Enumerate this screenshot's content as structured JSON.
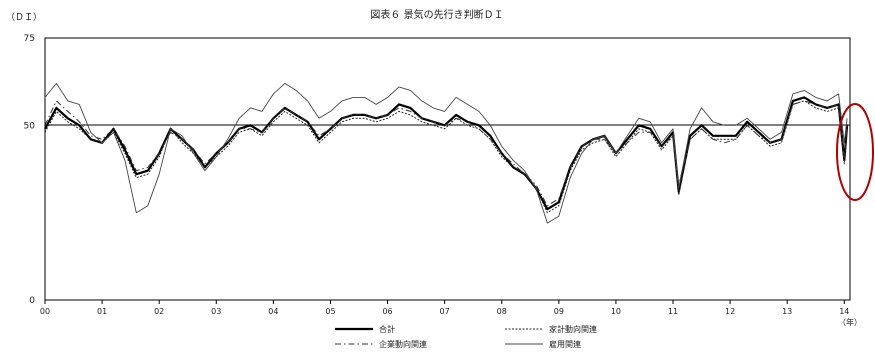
{
  "chart_data": {
    "type": "line",
    "title": "図表６ 景気の先行き判断ＤＩ",
    "ylabel": "（ＤＩ）",
    "xunit": "（年）",
    "ylim": [
      0,
      75
    ],
    "yticks": [
      "0",
      "50",
      "75"
    ],
    "xlim": [
      2000,
      2014.1
    ],
    "xticks": [
      "00",
      "01",
      "02",
      "03",
      "04",
      "05",
      "06",
      "07",
      "08",
      "09",
      "10",
      "11",
      "12",
      "13",
      "14"
    ],
    "reference_line": 50,
    "legend": [
      "合計",
      "家計動向関連",
      "企業動向関連",
      "雇用関連"
    ],
    "series": [
      {
        "name": "合計",
        "style": "thick",
        "color": "#000000",
        "points": [
          [
            2000.0,
            49
          ],
          [
            2000.2,
            55
          ],
          [
            2000.4,
            52
          ],
          [
            2000.6,
            50
          ],
          [
            2000.8,
            46
          ],
          [
            2001.0,
            45
          ],
          [
            2001.2,
            49
          ],
          [
            2001.4,
            43
          ],
          [
            2001.6,
            36
          ],
          [
            2001.8,
            37
          ],
          [
            2002.0,
            42
          ],
          [
            2002.2,
            49
          ],
          [
            2002.4,
            46
          ],
          [
            2002.6,
            43
          ],
          [
            2002.8,
            38
          ],
          [
            2003.0,
            42
          ],
          [
            2003.2,
            45
          ],
          [
            2003.4,
            49
          ],
          [
            2003.6,
            50
          ],
          [
            2003.8,
            48
          ],
          [
            2004.0,
            52
          ],
          [
            2004.2,
            55
          ],
          [
            2004.4,
            53
          ],
          [
            2004.6,
            51
          ],
          [
            2004.8,
            46
          ],
          [
            2005.0,
            49
          ],
          [
            2005.2,
            52
          ],
          [
            2005.4,
            53
          ],
          [
            2005.6,
            53
          ],
          [
            2005.8,
            52
          ],
          [
            2006.0,
            53
          ],
          [
            2006.2,
            56
          ],
          [
            2006.4,
            55
          ],
          [
            2006.6,
            52
          ],
          [
            2006.8,
            51
          ],
          [
            2007.0,
            50
          ],
          [
            2007.2,
            53
          ],
          [
            2007.4,
            51
          ],
          [
            2007.6,
            50
          ],
          [
            2007.8,
            47
          ],
          [
            2008.0,
            42
          ],
          [
            2008.2,
            38
          ],
          [
            2008.4,
            36
          ],
          [
            2008.6,
            32
          ],
          [
            2008.8,
            26
          ],
          [
            2009.0,
            28
          ],
          [
            2009.2,
            38
          ],
          [
            2009.4,
            44
          ],
          [
            2009.6,
            46
          ],
          [
            2009.8,
            47
          ],
          [
            2010.0,
            42
          ],
          [
            2010.2,
            46
          ],
          [
            2010.4,
            50
          ],
          [
            2010.6,
            49
          ],
          [
            2010.8,
            44
          ],
          [
            2011.0,
            48
          ],
          [
            2011.1,
            31
          ],
          [
            2011.3,
            47
          ],
          [
            2011.5,
            50
          ],
          [
            2011.7,
            47
          ],
          [
            2011.9,
            47
          ],
          [
            2012.1,
            47
          ],
          [
            2012.3,
            51
          ],
          [
            2012.5,
            48
          ],
          [
            2012.7,
            45
          ],
          [
            2012.9,
            46
          ],
          [
            2013.1,
            57
          ],
          [
            2013.3,
            58
          ],
          [
            2013.5,
            56
          ],
          [
            2013.7,
            55
          ],
          [
            2013.9,
            56
          ],
          [
            2014.0,
            40
          ],
          [
            2014.05,
            50
          ]
        ]
      },
      {
        "name": "家計動向関連",
        "style": "dotted",
        "color": "#222222",
        "points": [
          [
            2000.0,
            48
          ],
          [
            2000.2,
            54
          ],
          [
            2000.4,
            51
          ],
          [
            2000.6,
            49
          ],
          [
            2000.8,
            46
          ],
          [
            2001.0,
            45
          ],
          [
            2001.2,
            48
          ],
          [
            2001.4,
            42
          ],
          [
            2001.6,
            35
          ],
          [
            2001.8,
            36
          ],
          [
            2002.0,
            41
          ],
          [
            2002.2,
            49
          ],
          [
            2002.4,
            45
          ],
          [
            2002.6,
            42
          ],
          [
            2002.8,
            38
          ],
          [
            2003.0,
            41
          ],
          [
            2003.2,
            44
          ],
          [
            2003.4,
            48
          ],
          [
            2003.6,
            49
          ],
          [
            2003.8,
            47
          ],
          [
            2004.0,
            51
          ],
          [
            2004.2,
            54
          ],
          [
            2004.4,
            52
          ],
          [
            2004.6,
            50
          ],
          [
            2004.8,
            45
          ],
          [
            2005.0,
            48
          ],
          [
            2005.2,
            51
          ],
          [
            2005.4,
            52
          ],
          [
            2005.6,
            52
          ],
          [
            2005.8,
            51
          ],
          [
            2006.0,
            52
          ],
          [
            2006.2,
            54
          ],
          [
            2006.4,
            53
          ],
          [
            2006.6,
            51
          ],
          [
            2006.8,
            50
          ],
          [
            2007.0,
            49
          ],
          [
            2007.2,
            52
          ],
          [
            2007.4,
            50
          ],
          [
            2007.6,
            49
          ],
          [
            2007.8,
            46
          ],
          [
            2008.0,
            41
          ],
          [
            2008.2,
            38
          ],
          [
            2008.4,
            36
          ],
          [
            2008.6,
            32
          ],
          [
            2008.8,
            25
          ],
          [
            2009.0,
            27
          ],
          [
            2009.2,
            37
          ],
          [
            2009.4,
            43
          ],
          [
            2009.6,
            45
          ],
          [
            2009.8,
            46
          ],
          [
            2010.0,
            41
          ],
          [
            2010.2,
            45
          ],
          [
            2010.4,
            49
          ],
          [
            2010.6,
            48
          ],
          [
            2010.8,
            43
          ],
          [
            2011.0,
            47
          ],
          [
            2011.1,
            30
          ],
          [
            2011.3,
            46
          ],
          [
            2011.5,
            49
          ],
          [
            2011.7,
            46
          ],
          [
            2011.9,
            46
          ],
          [
            2012.1,
            46
          ],
          [
            2012.3,
            50
          ],
          [
            2012.5,
            47
          ],
          [
            2012.7,
            44
          ],
          [
            2012.9,
            45
          ],
          [
            2013.1,
            56
          ],
          [
            2013.3,
            57
          ],
          [
            2013.5,
            55
          ],
          [
            2013.7,
            54
          ],
          [
            2013.9,
            55
          ],
          [
            2014.0,
            39
          ],
          [
            2014.05,
            49
          ]
        ]
      },
      {
        "name": "企業動向関連",
        "style": "dashdot",
        "color": "#333333",
        "points": [
          [
            2000.0,
            50
          ],
          [
            2000.2,
            57
          ],
          [
            2000.4,
            54
          ],
          [
            2000.6,
            51
          ],
          [
            2000.8,
            47
          ],
          [
            2001.0,
            46
          ],
          [
            2001.2,
            49
          ],
          [
            2001.4,
            44
          ],
          [
            2001.6,
            37
          ],
          [
            2001.8,
            38
          ],
          [
            2002.0,
            42
          ],
          [
            2002.2,
            48
          ],
          [
            2002.4,
            46
          ],
          [
            2002.6,
            43
          ],
          [
            2002.8,
            39
          ],
          [
            2003.0,
            42
          ],
          [
            2003.2,
            45
          ],
          [
            2003.4,
            49
          ],
          [
            2003.6,
            49
          ],
          [
            2003.8,
            48
          ],
          [
            2004.0,
            52
          ],
          [
            2004.2,
            55
          ],
          [
            2004.4,
            53
          ],
          [
            2004.6,
            51
          ],
          [
            2004.8,
            47
          ],
          [
            2005.0,
            49
          ],
          [
            2005.2,
            52
          ],
          [
            2005.4,
            53
          ],
          [
            2005.6,
            53
          ],
          [
            2005.8,
            52
          ],
          [
            2006.0,
            53
          ],
          [
            2006.2,
            55
          ],
          [
            2006.4,
            54
          ],
          [
            2006.6,
            52
          ],
          [
            2006.8,
            51
          ],
          [
            2007.0,
            50
          ],
          [
            2007.2,
            52
          ],
          [
            2007.4,
            51
          ],
          [
            2007.6,
            49
          ],
          [
            2007.8,
            46
          ],
          [
            2008.0,
            42
          ],
          [
            2008.2,
            39
          ],
          [
            2008.4,
            36
          ],
          [
            2008.6,
            33
          ],
          [
            2008.8,
            27
          ],
          [
            2009.0,
            29
          ],
          [
            2009.2,
            38
          ],
          [
            2009.4,
            44
          ],
          [
            2009.6,
            46
          ],
          [
            2009.8,
            46
          ],
          [
            2010.0,
            42
          ],
          [
            2010.2,
            45
          ],
          [
            2010.4,
            48
          ],
          [
            2010.6,
            48
          ],
          [
            2010.8,
            44
          ],
          [
            2011.0,
            47
          ],
          [
            2011.1,
            33
          ],
          [
            2011.3,
            46
          ],
          [
            2011.5,
            49
          ],
          [
            2011.7,
            46
          ],
          [
            2011.9,
            45
          ],
          [
            2012.1,
            46
          ],
          [
            2012.3,
            50
          ],
          [
            2012.5,
            47
          ],
          [
            2012.7,
            45
          ],
          [
            2012.9,
            46
          ],
          [
            2013.1,
            56
          ],
          [
            2013.3,
            57
          ],
          [
            2013.5,
            56
          ],
          [
            2013.7,
            55
          ],
          [
            2013.9,
            56
          ],
          [
            2014.0,
            41
          ],
          [
            2014.05,
            50
          ]
        ]
      },
      {
        "name": "雇用関連",
        "style": "thin",
        "color": "#444444",
        "points": [
          [
            2000.0,
            58
          ],
          [
            2000.2,
            62
          ],
          [
            2000.4,
            57
          ],
          [
            2000.6,
            56
          ],
          [
            2000.8,
            48
          ],
          [
            2001.0,
            45
          ],
          [
            2001.2,
            48
          ],
          [
            2001.4,
            40
          ],
          [
            2001.6,
            25
          ],
          [
            2001.8,
            27
          ],
          [
            2002.0,
            36
          ],
          [
            2002.2,
            49
          ],
          [
            2002.4,
            47
          ],
          [
            2002.6,
            42
          ],
          [
            2002.8,
            37
          ],
          [
            2003.0,
            41
          ],
          [
            2003.2,
            46
          ],
          [
            2003.4,
            52
          ],
          [
            2003.6,
            55
          ],
          [
            2003.8,
            54
          ],
          [
            2004.0,
            59
          ],
          [
            2004.2,
            62
          ],
          [
            2004.4,
            60
          ],
          [
            2004.6,
            57
          ],
          [
            2004.8,
            52
          ],
          [
            2005.0,
            54
          ],
          [
            2005.2,
            57
          ],
          [
            2005.4,
            58
          ],
          [
            2005.6,
            58
          ],
          [
            2005.8,
            56
          ],
          [
            2006.0,
            58
          ],
          [
            2006.2,
            61
          ],
          [
            2006.4,
            60
          ],
          [
            2006.6,
            57
          ],
          [
            2006.8,
            55
          ],
          [
            2007.0,
            54
          ],
          [
            2007.2,
            58
          ],
          [
            2007.4,
            56
          ],
          [
            2007.6,
            54
          ],
          [
            2007.8,
            50
          ],
          [
            2008.0,
            44
          ],
          [
            2008.2,
            40
          ],
          [
            2008.4,
            37
          ],
          [
            2008.6,
            32
          ],
          [
            2008.8,
            22
          ],
          [
            2009.0,
            24
          ],
          [
            2009.2,
            35
          ],
          [
            2009.4,
            42
          ],
          [
            2009.6,
            46
          ],
          [
            2009.8,
            47
          ],
          [
            2010.0,
            42
          ],
          [
            2010.2,
            47
          ],
          [
            2010.4,
            52
          ],
          [
            2010.6,
            51
          ],
          [
            2010.8,
            45
          ],
          [
            2011.0,
            49
          ],
          [
            2011.1,
            32
          ],
          [
            2011.3,
            49
          ],
          [
            2011.5,
            55
          ],
          [
            2011.7,
            51
          ],
          [
            2011.9,
            50
          ],
          [
            2012.1,
            50
          ],
          [
            2012.3,
            52
          ],
          [
            2012.5,
            49
          ],
          [
            2012.7,
            46
          ],
          [
            2012.9,
            48
          ],
          [
            2013.1,
            59
          ],
          [
            2013.3,
            60
          ],
          [
            2013.5,
            58
          ],
          [
            2013.7,
            57
          ],
          [
            2013.9,
            59
          ],
          [
            2014.0,
            45
          ],
          [
            2014.05,
            52
          ]
        ]
      }
    ],
    "annotation": {
      "shape": "ellipse",
      "color": "#b00000",
      "target_x": 2014.0
    }
  }
}
